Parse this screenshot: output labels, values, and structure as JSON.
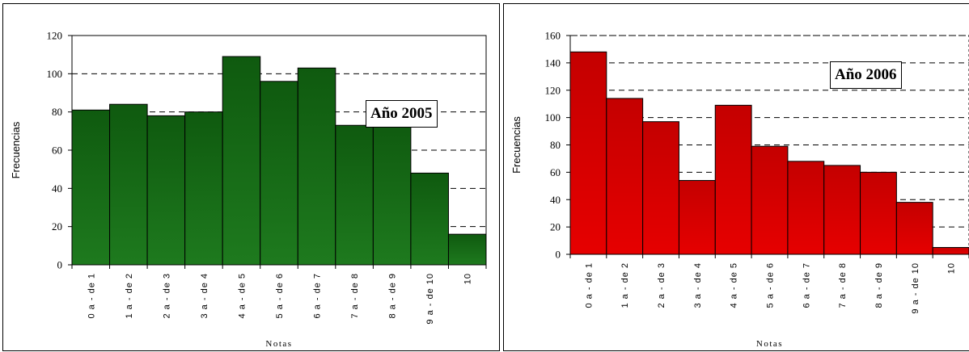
{
  "chart_data": [
    {
      "type": "bar",
      "annotation": "Año 2005",
      "xlabel": "Notas",
      "ylabel": "Frecuencias",
      "ylim": [
        0,
        120
      ],
      "yticks": [
        0,
        20,
        40,
        60,
        80,
        100,
        120
      ],
      "grid": "horizontal dashed",
      "color": "#1e7a1e",
      "categories": [
        "0 a - de 1",
        "1 a - de 2",
        "2 a - de 3",
        "3 a - de 4",
        "4 a - de 5",
        "5 a - de 6",
        "6 a - de 7",
        "7 a - de 8",
        "8 a - de 9",
        "9 a - de 10",
        "10"
      ],
      "values": [
        81,
        84,
        78,
        80,
        109,
        96,
        103,
        73,
        75,
        48,
        16
      ]
    },
    {
      "type": "bar",
      "annotation": "Año 2006",
      "xlabel": "Notas",
      "ylabel": "Frecuencias",
      "ylim": [
        0,
        160
      ],
      "yticks": [
        0,
        20,
        40,
        60,
        80,
        100,
        120,
        140,
        160
      ],
      "grid": "horizontal dashed",
      "color": "#e60000",
      "categories": [
        "0 a - de 1",
        "1 a - de 2",
        "2 a - de 3",
        "3 a - de 4",
        "4 a - de 5",
        "5 a - de 6",
        "6 a - de 7",
        "7 a - de 8",
        "8 a - de 9",
        "9 a - de 10",
        "10"
      ],
      "values": [
        148,
        114,
        97,
        54,
        109,
        79,
        68,
        65,
        60,
        38,
        5
      ]
    }
  ]
}
